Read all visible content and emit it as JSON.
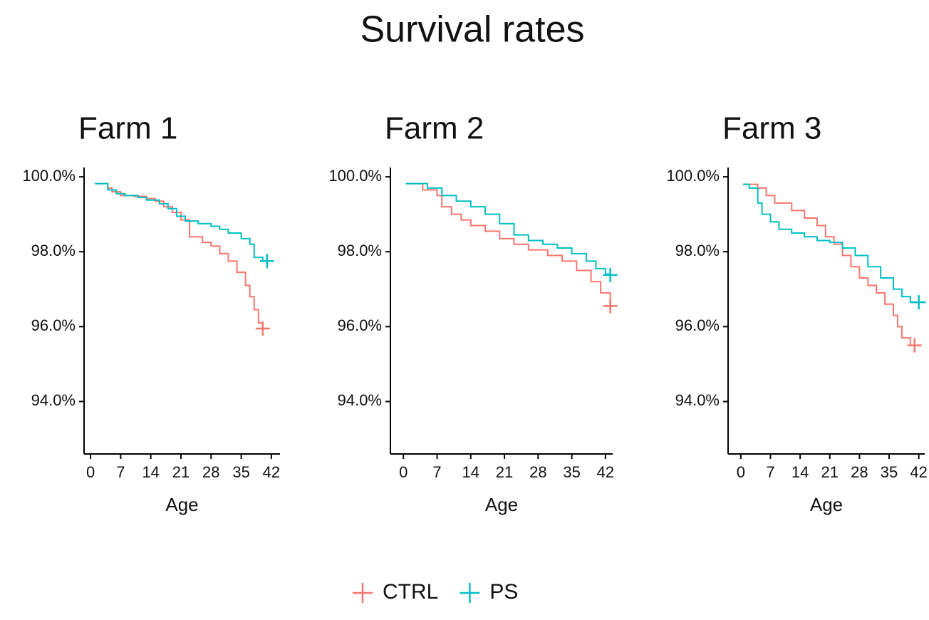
{
  "title": "Survival rates",
  "chart_data": [
    {
      "type": "line",
      "step": true,
      "title": "Farm 1",
      "x_label": "Age",
      "xlim": [
        -1.5,
        44
      ],
      "ylim": [
        92.6,
        100.25
      ],
      "xticks": [
        0,
        7,
        14,
        21,
        28,
        35,
        42
      ],
      "yticks": [
        {
          "value": 94,
          "label": "94.0%"
        },
        {
          "value": 96,
          "label": "96.0%"
        },
        {
          "value": 98,
          "label": "98.0%"
        },
        {
          "value": 100,
          "label": "100.0%"
        }
      ],
      "series": [
        {
          "name": "CTRL",
          "color": "#F8766D",
          "x": [
            1,
            4,
            5,
            7,
            10,
            13,
            15,
            17,
            19,
            21,
            23,
            26,
            28,
            30,
            32,
            34,
            36,
            37,
            38,
            39,
            40
          ],
          "values": [
            99.82,
            99.7,
            99.6,
            99.5,
            99.48,
            99.42,
            99.35,
            99.2,
            99.05,
            98.85,
            98.4,
            98.25,
            98.15,
            97.95,
            97.75,
            97.45,
            97.1,
            96.8,
            96.45,
            96.1,
            95.95
          ]
        },
        {
          "name": "PS",
          "color": "#00BFC4",
          "x": [
            1,
            4,
            6,
            8,
            11,
            13,
            16,
            18,
            20,
            22,
            25,
            28,
            30,
            32,
            35,
            37,
            38,
            40,
            41
          ],
          "values": [
            99.82,
            99.65,
            99.55,
            99.5,
            99.45,
            99.38,
            99.28,
            99.15,
            98.95,
            98.82,
            98.75,
            98.68,
            98.6,
            98.5,
            98.35,
            98.2,
            97.85,
            97.75,
            97.75
          ]
        }
      ]
    },
    {
      "type": "line",
      "step": true,
      "title": "Farm 2",
      "x_label": "Age",
      "xlim": [
        -2.7,
        43.5
      ],
      "ylim": [
        92.6,
        100.25
      ],
      "xticks": [
        0,
        7,
        14,
        21,
        28,
        35,
        42
      ],
      "yticks": [
        {
          "value": 94,
          "label": "94.0%"
        },
        {
          "value": 96,
          "label": "96.0%"
        },
        {
          "value": 98,
          "label": "98.0%"
        },
        {
          "value": 100,
          "label": "100.0%"
        }
      ],
      "series": [
        {
          "name": "CTRL",
          "color": "#F8766D",
          "x": [
            0.5,
            4,
            7,
            8,
            10,
            12,
            14,
            17,
            20,
            23,
            26,
            30,
            33,
            36,
            39,
            41,
            43
          ],
          "values": [
            99.82,
            99.65,
            99.5,
            99.2,
            99.0,
            98.85,
            98.7,
            98.55,
            98.35,
            98.2,
            98.05,
            97.9,
            97.75,
            97.5,
            97.2,
            96.9,
            96.55
          ]
        },
        {
          "name": "PS",
          "color": "#00BFC4",
          "x": [
            0.5,
            5,
            8,
            11,
            14,
            17,
            20,
            23,
            26,
            29,
            32,
            35,
            38,
            40,
            42,
            43
          ],
          "values": [
            99.82,
            99.7,
            99.5,
            99.35,
            99.2,
            99.0,
            98.75,
            98.45,
            98.3,
            98.2,
            98.1,
            97.95,
            97.75,
            97.55,
            97.4,
            97.38
          ]
        }
      ]
    },
    {
      "type": "line",
      "step": true,
      "title": "Farm 3",
      "x_label": "Age",
      "xlim": [
        -3,
        43.4
      ],
      "ylim": [
        92.6,
        100.25
      ],
      "xticks": [
        0,
        7,
        14,
        21,
        28,
        35,
        42
      ],
      "yticks": [
        {
          "value": 94,
          "label": "94.0%"
        },
        {
          "value": 96,
          "label": "96.0%"
        },
        {
          "value": 98,
          "label": "98.0%"
        },
        {
          "value": 100,
          "label": "100.0%"
        }
      ],
      "series": [
        {
          "name": "CTRL",
          "color": "#F8766D",
          "x": [
            0.5,
            4,
            6,
            8,
            12,
            15,
            18,
            20,
            22,
            24,
            26,
            28,
            30,
            32,
            34,
            36,
            37,
            38,
            40,
            41
          ],
          "values": [
            99.8,
            99.7,
            99.5,
            99.3,
            99.1,
            98.9,
            98.7,
            98.4,
            98.2,
            97.9,
            97.6,
            97.3,
            97.1,
            96.9,
            96.6,
            96.3,
            96.0,
            95.7,
            95.5,
            95.5
          ]
        },
        {
          "name": "PS",
          "color": "#00BFC4",
          "x": [
            0.5,
            2,
            4,
            5,
            7,
            9,
            12,
            15,
            18,
            21,
            24,
            27,
            30,
            33,
            36,
            38,
            40,
            42
          ],
          "values": [
            99.8,
            99.7,
            99.3,
            99.0,
            98.8,
            98.6,
            98.5,
            98.4,
            98.3,
            98.25,
            98.1,
            97.9,
            97.6,
            97.3,
            97.0,
            96.8,
            96.65,
            96.65
          ]
        }
      ]
    }
  ]
}
